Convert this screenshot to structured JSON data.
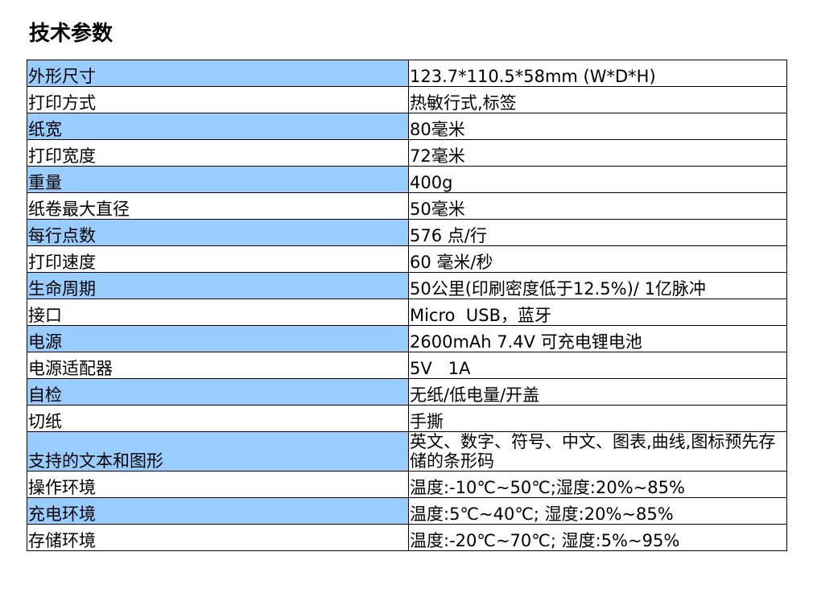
{
  "title": "技术参数",
  "table": {
    "rows": [
      [
        "外形尺寸",
        "123.7*110.5*58mm (W*D*H)"
      ],
      [
        "打印方式",
        "热敏行式,标签"
      ],
      [
        "纸宽",
        "80毫米"
      ],
      [
        "打印宽度",
        "72毫米"
      ],
      [
        "重量",
        "400g"
      ],
      [
        "纸卷最大直径",
        "50毫米"
      ],
      [
        "每行点数",
        "576 点/行"
      ],
      [
        "打印速度",
        "60 毫米/秒"
      ],
      [
        "生命周期",
        "50公里(印刷密度低于12.5%)/ 1亿脉冲"
      ],
      [
        "接口",
        "Micro  USB，蓝牙"
      ],
      [
        "电源",
        "2600mAh 7.4V 可充电锂电池"
      ],
      [
        "电源适配器",
        "5V   1A"
      ],
      [
        "自检",
        "无纸/低电量/开盖"
      ],
      [
        "切纸",
        "手撕"
      ],
      [
        "支持的文本和图形",
        "英文、数字、符号、中文、图表,曲线,图标预先存储的条形码"
      ],
      [
        "操作环境",
        "温度:-10℃~50℃;湿度:20%~85%"
      ],
      [
        "充电环境",
        "温度:5℃~40℃; 湿度:20%~85%"
      ],
      [
        "存储环境",
        "温度:-20℃~70℃; 湿度:5%~95%"
      ]
    ]
  }
}
